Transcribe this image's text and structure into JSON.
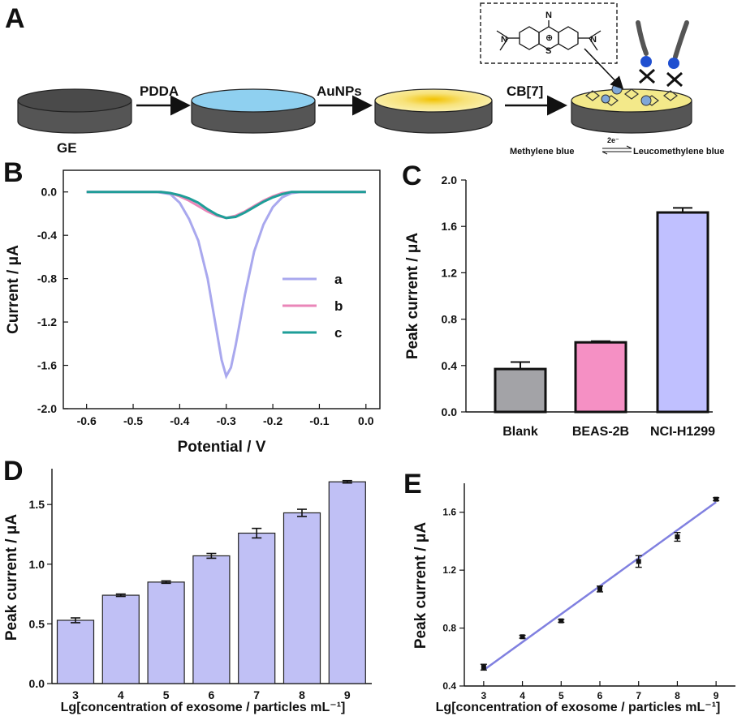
{
  "panel_A": {
    "label": "A",
    "steps": [
      "PDDA",
      "AuNPs",
      "CB[7]"
    ],
    "electrode_label": "GE",
    "reaction": {
      "left": "Methylene blue",
      "electrons": "2e⁻",
      "right": "Leucomethylene blue"
    },
    "structure_charge": "⊕",
    "structure_atoms": {
      "n_top": "N",
      "s_ring": "S",
      "n_left": "N",
      "n_right": "N"
    }
  },
  "chart_data": [
    {
      "panel": "B",
      "type": "line",
      "xlabel": "Potential / V",
      "ylabel": "Current / μA",
      "xlim": [
        -0.65,
        0.03
      ],
      "ylim": [
        -2.0,
        0.2
      ],
      "xticks": [
        -0.6,
        -0.5,
        -0.4,
        -0.3,
        -0.2,
        -0.1,
        0.0
      ],
      "xtick_labels": [
        "-0.6",
        "-0.5",
        "-0.4",
        "-0.3",
        "-0.2",
        "-0.1",
        "0.0"
      ],
      "yticks": [
        0.0,
        -0.4,
        -0.8,
        -1.2,
        -1.6,
        -2.0
      ],
      "ytick_labels": [
        "0.0",
        "-0.4",
        "-0.8",
        "-1.2",
        "-1.6",
        "-2.0"
      ],
      "legend_position": "right",
      "series": [
        {
          "name": "a",
          "color": "#a9a8ee",
          "x": [
            -0.6,
            -0.45,
            -0.42,
            -0.4,
            -0.38,
            -0.36,
            -0.34,
            -0.32,
            -0.31,
            -0.3,
            -0.29,
            -0.28,
            -0.26,
            -0.24,
            -0.22,
            -0.2,
            -0.18,
            -0.16,
            -0.14,
            -0.1,
            0.0
          ],
          "y": [
            0,
            0,
            -0.02,
            -0.1,
            -0.25,
            -0.45,
            -0.8,
            -1.3,
            -1.55,
            -1.7,
            -1.62,
            -1.42,
            -0.95,
            -0.55,
            -0.3,
            -0.14,
            -0.05,
            -0.01,
            0,
            0,
            0
          ]
        },
        {
          "name": "b",
          "color": "#ea86b8",
          "x": [
            -0.6,
            -0.44,
            -0.42,
            -0.4,
            -0.38,
            -0.36,
            -0.34,
            -0.32,
            -0.3,
            -0.28,
            -0.26,
            -0.24,
            -0.22,
            -0.2,
            -0.18,
            -0.16,
            -0.14,
            -0.1,
            0.0
          ],
          "y": [
            0,
            0,
            -0.01,
            -0.04,
            -0.08,
            -0.13,
            -0.18,
            -0.22,
            -0.24,
            -0.22,
            -0.18,
            -0.13,
            -0.08,
            -0.04,
            -0.01,
            0,
            0,
            0,
            0
          ]
        },
        {
          "name": "c",
          "color": "#1e9e98",
          "x": [
            -0.6,
            -0.44,
            -0.42,
            -0.4,
            -0.38,
            -0.36,
            -0.34,
            -0.32,
            -0.3,
            -0.28,
            -0.26,
            -0.24,
            -0.22,
            -0.2,
            -0.18,
            -0.16,
            -0.14,
            -0.1,
            0.0
          ],
          "y": [
            0,
            0,
            -0.01,
            -0.03,
            -0.06,
            -0.1,
            -0.16,
            -0.21,
            -0.24,
            -0.23,
            -0.19,
            -0.14,
            -0.09,
            -0.05,
            -0.02,
            0,
            0,
            0,
            0
          ]
        }
      ]
    },
    {
      "panel": "C",
      "type": "bar",
      "ylabel": "Peak current / μA",
      "categories": [
        "Blank",
        "BEAS-2B",
        "NCI-H1299"
      ],
      "values": [
        0.37,
        0.6,
        1.72
      ],
      "errors": [
        0.06,
        0.01,
        0.04
      ],
      "colors": [
        "#a3a3a7",
        "#f590c4",
        "#c0c0ff"
      ],
      "ylim": [
        0.0,
        2.0
      ],
      "yticks": [
        0.0,
        0.4,
        0.8,
        1.2,
        1.6,
        2.0
      ],
      "ytick_labels": [
        "0.0",
        "0.4",
        "0.8",
        "1.2",
        "1.6",
        "2.0"
      ]
    },
    {
      "panel": "D",
      "type": "bar",
      "xlabel": "Lg[concentration of exosome / particles mL⁻¹]",
      "ylabel": "Peak current / μA",
      "categories": [
        "3",
        "4",
        "5",
        "6",
        "7",
        "8",
        "9"
      ],
      "values": [
        0.53,
        0.74,
        0.85,
        1.07,
        1.26,
        1.43,
        1.69
      ],
      "errors": [
        0.02,
        0.01,
        0.01,
        0.02,
        0.04,
        0.03,
        0.01
      ],
      "color": "#c0c0f5",
      "ylim": [
        0.0,
        1.8
      ],
      "yticks": [
        0.0,
        0.5,
        1.0,
        1.5
      ],
      "ytick_labels": [
        "0.0",
        "0.5",
        "1.0",
        "1.5"
      ]
    },
    {
      "panel": "E",
      "type": "scatter",
      "xlabel": "Lg[concentration of exosome / particles mL⁻¹]",
      "ylabel": "Peak current / μA",
      "x": [
        3,
        4,
        5,
        6,
        7,
        8,
        9
      ],
      "y": [
        0.53,
        0.74,
        0.85,
        1.07,
        1.26,
        1.43,
        1.69
      ],
      "errors": [
        0.02,
        0.01,
        0.01,
        0.02,
        0.04,
        0.03,
        0.01
      ],
      "fit_line": {
        "x": [
          3,
          9
        ],
        "y": [
          0.51,
          1.67
        ],
        "color": "#8080e0"
      },
      "xlim": [
        2.5,
        9.5
      ],
      "ylim": [
        0.4,
        1.8
      ],
      "xticks": [
        3,
        4,
        5,
        6,
        7,
        8,
        9
      ],
      "xtick_labels": [
        "3",
        "4",
        "5",
        "6",
        "7",
        "8",
        "9"
      ],
      "yticks": [
        0.4,
        0.8,
        1.2,
        1.6
      ],
      "ytick_labels": [
        "0.4",
        "0.8",
        "1.2",
        "1.6"
      ]
    }
  ]
}
